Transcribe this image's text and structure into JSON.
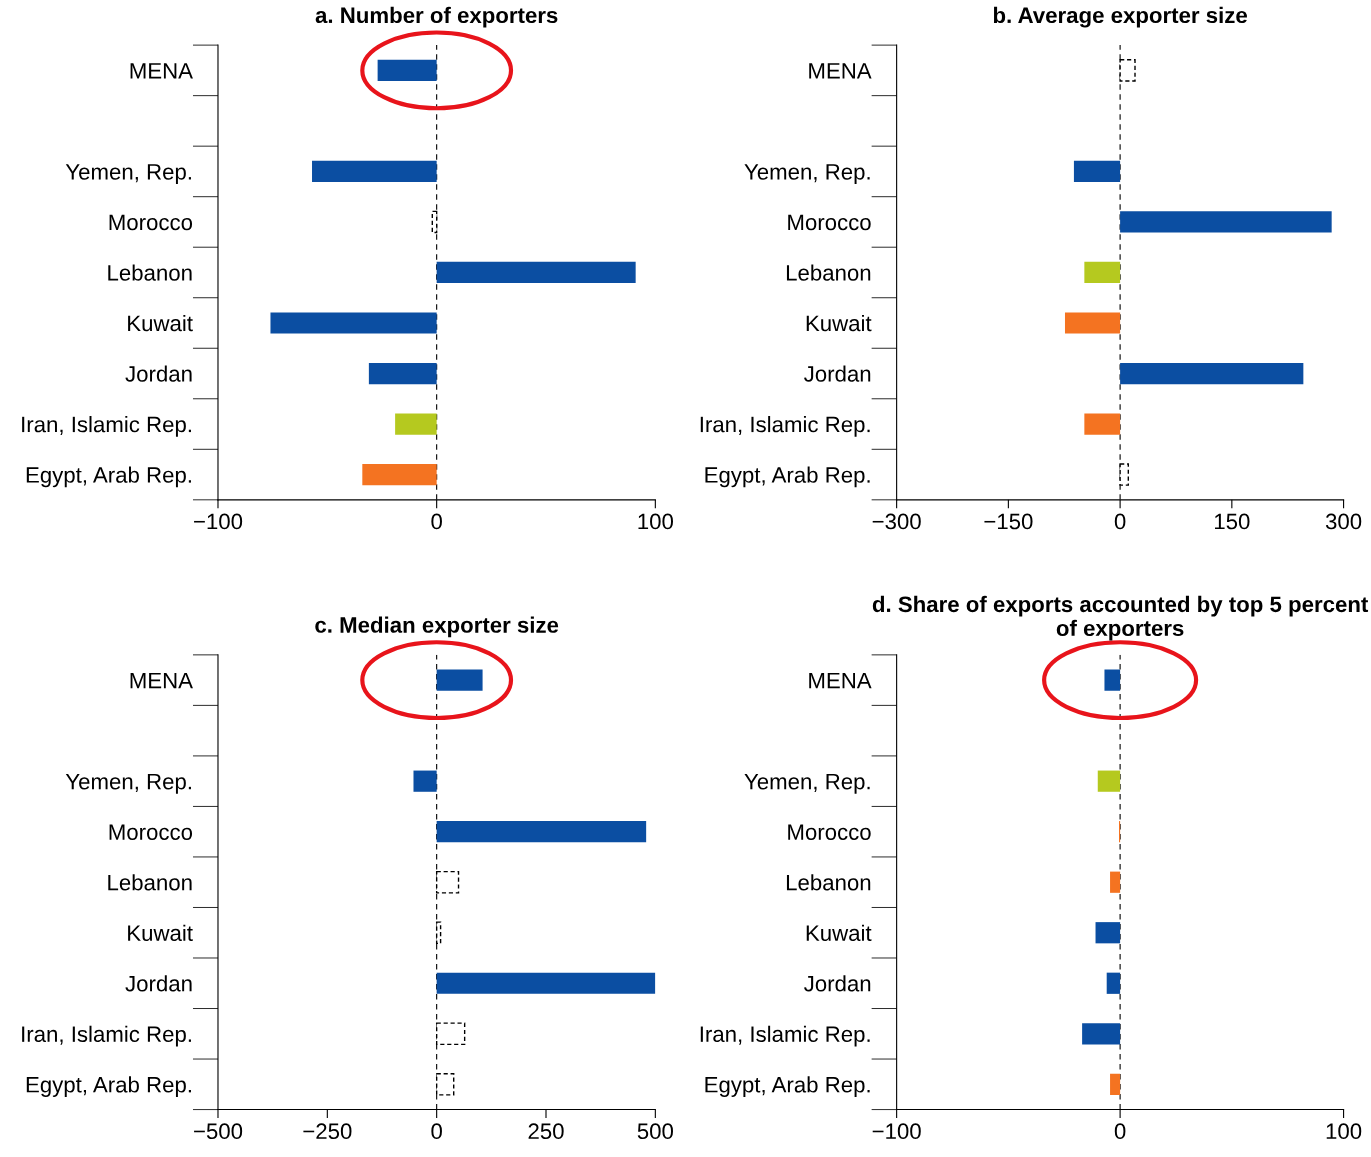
{
  "chart_data": [
    {
      "type": "bar",
      "orientation": "horizontal",
      "title": "a. Number of exporters",
      "categories": [
        "MENA",
        null,
        "Yemen, Rep.",
        "Morocco",
        "Lebanon",
        "Kuwait",
        "Jordan",
        "Iran, Islamic Rep.",
        "Egypt, Arab Rep."
      ],
      "values": [
        -27,
        null,
        -57,
        -2,
        91,
        -76,
        -31,
        -19,
        -34
      ],
      "colors": [
        "#0b4ea2",
        null,
        "#0b4ea2",
        "#ffffff",
        "#0b4ea2",
        "#0b4ea2",
        "#0b4ea2",
        "#b5c91f",
        "#f47321"
      ],
      "xlim": [
        -100,
        100
      ],
      "xticks": [
        {
          "value": -100,
          "label": "−100"
        },
        0,
        100
      ],
      "ref_lines": [
        {
          "axis": "x",
          "value": 0,
          "color": "#000000",
          "line_style": "dashed"
        }
      ],
      "grid": false,
      "legend": false
    },
    {
      "type": "bar",
      "orientation": "horizontal",
      "title": "b. Average exporter size",
      "categories": [
        "MENA",
        null,
        "Yemen, Rep.",
        "Morocco",
        "Lebanon",
        "Kuwait",
        "Jordan",
        "Iran, Islamic Rep.",
        "Egypt, Arab Rep."
      ],
      "values": [
        20,
        null,
        -62,
        284,
        -48,
        -74,
        246,
        -48,
        11
      ],
      "colors": [
        "#ffffff",
        null,
        "#0b4ea2",
        "#0b4ea2",
        "#b5c91f",
        "#f47321",
        "#0b4ea2",
        "#f47321",
        "#ffffff"
      ],
      "xlim": [
        -300,
        300
      ],
      "xticks": [
        {
          "value": -300,
          "label": "−300"
        },
        {
          "value": -150,
          "label": "−150"
        },
        0,
        150,
        300
      ],
      "ref_lines": [
        {
          "axis": "x",
          "value": 0,
          "color": "#000000",
          "line_style": "dashed"
        }
      ],
      "grid": false,
      "legend": false
    },
    {
      "type": "bar",
      "orientation": "horizontal",
      "title": "c. Median exporter size",
      "categories": [
        "MENA",
        null,
        "Yemen, Rep.",
        "Morocco",
        "Lebanon",
        "Kuwait",
        "Jordan",
        "Iran, Islamic Rep.",
        "Egypt, Arab Rep."
      ],
      "values": [
        105,
        null,
        -53,
        479,
        50,
        9,
        500,
        64,
        39
      ],
      "colors": [
        "#0b4ea2",
        null,
        "#0b4ea2",
        "#0b4ea2",
        "#ffffff",
        "#ffffff",
        "#0b4ea2",
        "#ffffff",
        "#ffffff"
      ],
      "xlim": [
        -500,
        500
      ],
      "xticks": [
        {
          "value": -500,
          "label": "−500"
        },
        {
          "value": -250,
          "label": "−250"
        },
        0,
        250,
        500
      ],
      "ref_lines": [
        {
          "axis": "x",
          "value": 0,
          "color": "#000000",
          "line_style": "dashed"
        }
      ],
      "grid": false,
      "legend": false
    },
    {
      "type": "bar",
      "orientation": "horizontal",
      "title": "d. Share of exports accounted by top 5 percent of exporters",
      "categories": [
        "MENA",
        null,
        "Yemen, Rep.",
        "Morocco",
        "Lebanon",
        "Kuwait",
        "Jordan",
        "Iran, Islamic Rep.",
        "Egypt, Arab Rep."
      ],
      "values": [
        -7,
        null,
        -10,
        -0.5,
        -4.5,
        -11,
        -6,
        -17,
        -4.5
      ],
      "colors": [
        "#0b4ea2",
        null,
        "#b5c91f",
        "#f47321",
        "#f47321",
        "#0b4ea2",
        "#0b4ea2",
        "#0b4ea2",
        "#f47321"
      ],
      "xlim": [
        -100,
        100
      ],
      "xticks": [
        {
          "value": -100,
          "label": "−100"
        },
        0,
        100
      ],
      "ref_lines": [
        {
          "axis": "x",
          "value": 0,
          "color": "#000000",
          "line_style": "dashed"
        }
      ],
      "grid": false,
      "legend": false
    }
  ]
}
